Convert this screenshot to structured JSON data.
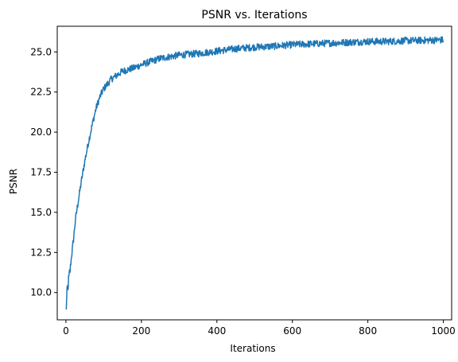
{
  "chart_data": {
    "type": "line",
    "title": "PSNR vs. Iterations",
    "xlabel": "Iterations",
    "ylabel": "PSNR",
    "xlim": [
      -23,
      1022
    ],
    "ylim": [
      8.3,
      26.6
    ],
    "grid": false,
    "x_ticks": [
      0,
      200,
      400,
      600,
      800,
      1000
    ],
    "x_tick_labels": [
      "0",
      "200",
      "400",
      "600",
      "800",
      "1000"
    ],
    "y_ticks": [
      10.0,
      12.5,
      15.0,
      17.5,
      20.0,
      22.5,
      25.0
    ],
    "y_tick_labels": [
      "10.0",
      "12.5",
      "15.0",
      "17.5",
      "20.0",
      "22.5",
      "25.0"
    ],
    "series": [
      {
        "color": "#1f77b4",
        "anchors": {
          "x": [
            0,
            3,
            6,
            10,
            15,
            20,
            25,
            30,
            40,
            50,
            60,
            70,
            80,
            90,
            100,
            120,
            150,
            180,
            200,
            250,
            300,
            350,
            400,
            450,
            500,
            550,
            600,
            650,
            700,
            750,
            800,
            850,
            900,
            950,
            1000
          ],
          "y": [
            8.8,
            9.9,
            10.5,
            11.2,
            12.3,
            13.3,
            14.5,
            15.3,
            16.8,
            18.2,
            19.4,
            20.5,
            21.5,
            22.2,
            22.7,
            23.3,
            23.8,
            24.0,
            24.2,
            24.6,
            24.8,
            24.9,
            25.05,
            25.2,
            25.3,
            25.35,
            25.45,
            25.5,
            25.55,
            25.6,
            25.65,
            25.65,
            25.7,
            25.72,
            25.75
          ]
        },
        "noise_amplitude": 0.22
      }
    ]
  }
}
